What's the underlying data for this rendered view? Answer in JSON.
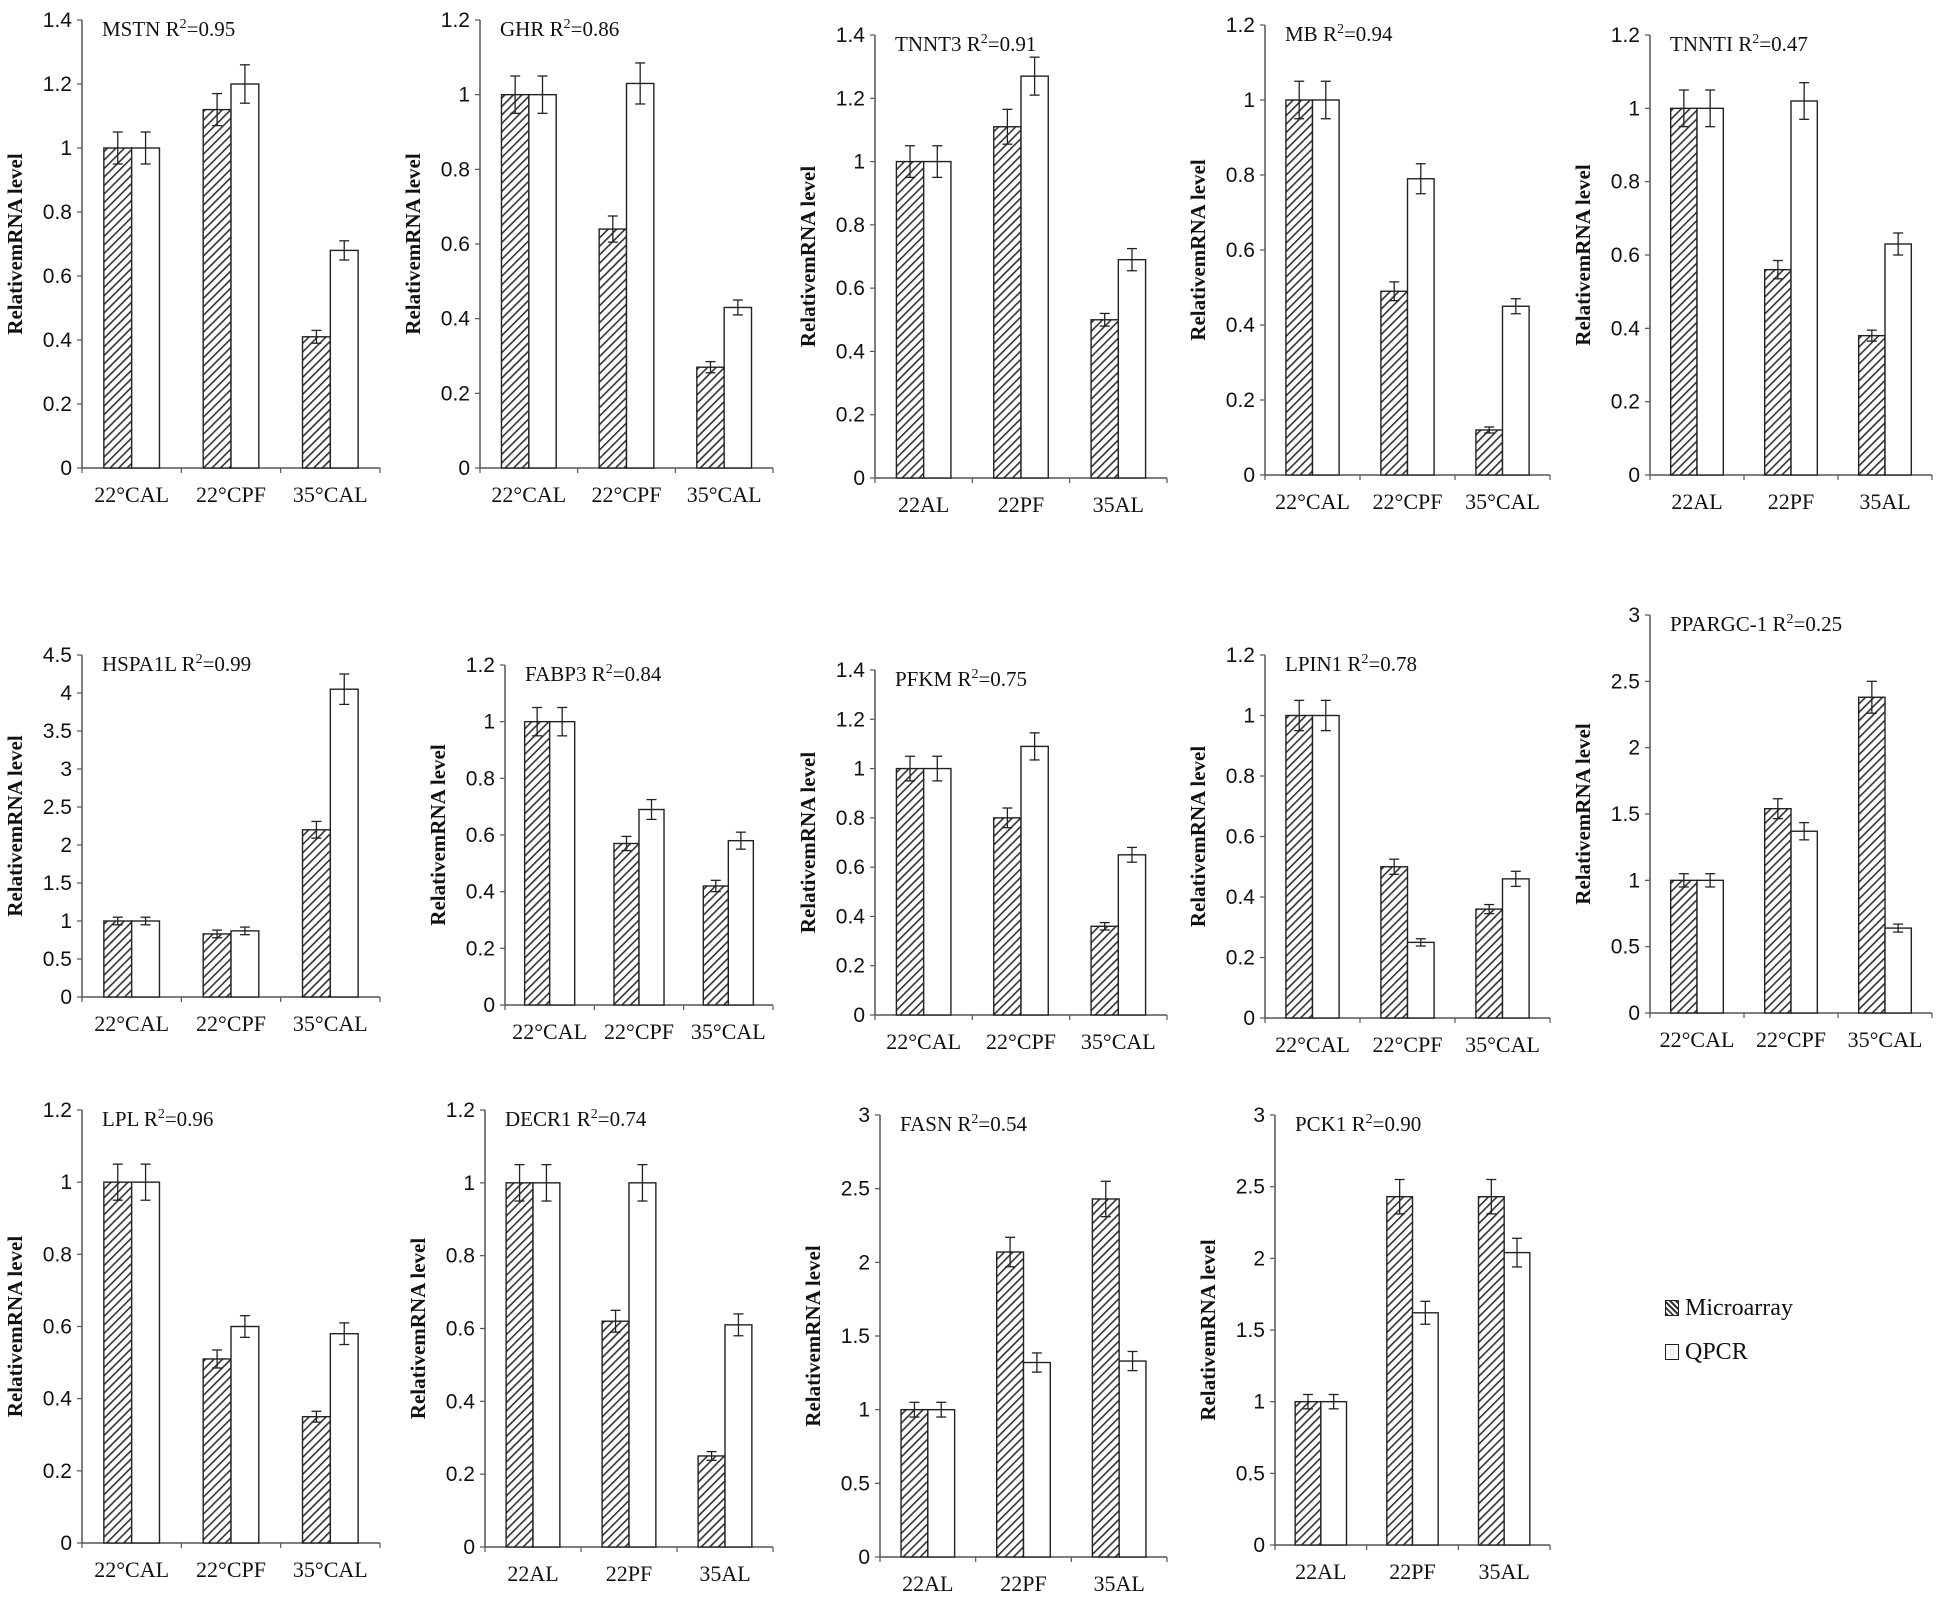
{
  "legend": {
    "microarray": "Microarray",
    "qpcr": "QPCR"
  },
  "colors": {
    "hatch": "#333333",
    "open": "#ffffff",
    "axis": "#555555",
    "text": "#111111"
  },
  "chart_data": [
    {
      "type": "bar",
      "gene": "MSTN",
      "r2": "R",
      "r2_value": "=0.95",
      "ylabel": "RelativemRNA level",
      "categories": [
        "22°CAL",
        "22°CPF",
        "35°CAL"
      ],
      "ylim": [
        0,
        1.4
      ],
      "yticks": [
        "0",
        "0.2",
        "0.4",
        "0.6",
        "0.8",
        "1",
        "1.2",
        "1.4"
      ],
      "series": [
        {
          "name": "Microarray",
          "values": [
            1.0,
            1.12,
            0.41
          ],
          "errors": [
            0.05,
            0.05,
            0.02
          ]
        },
        {
          "name": "QPCR",
          "values": [
            1.0,
            1.2,
            0.68
          ],
          "errors": [
            0.05,
            0.06,
            0.03
          ]
        }
      ]
    },
    {
      "type": "bar",
      "gene": "GHR",
      "r2": "R",
      "r2_value": "=0.86",
      "ylabel": "RelativemRNA level",
      "categories": [
        "22°CAL",
        "22°CPF",
        "35°CAL"
      ],
      "ylim": [
        0,
        1.2
      ],
      "yticks": [
        "0",
        "0.2",
        "0.4",
        "0.6",
        "0.8",
        "1",
        "1.2"
      ],
      "series": [
        {
          "name": "Microarray",
          "values": [
            1.0,
            0.64,
            0.27
          ],
          "errors": [
            0.05,
            0.035,
            0.015
          ]
        },
        {
          "name": "QPCR",
          "values": [
            1.0,
            1.03,
            0.43
          ],
          "errors": [
            0.05,
            0.055,
            0.02
          ]
        }
      ]
    },
    {
      "type": "bar",
      "gene": "TNNT3",
      "r2": "R",
      "r2_value": "=0.91",
      "ylabel": "RelativemRNA level",
      "categories": [
        "22AL",
        "22PF",
        "35AL"
      ],
      "ylim": [
        0,
        1.4
      ],
      "yticks": [
        "0",
        "0.2",
        "0.4",
        "0.6",
        "0.8",
        "1",
        "1.2",
        "1.4"
      ],
      "series": [
        {
          "name": "Microarray",
          "values": [
            1.0,
            1.11,
            0.5
          ],
          "errors": [
            0.05,
            0.055,
            0.02
          ]
        },
        {
          "name": "QPCR",
          "values": [
            1.0,
            1.27,
            0.69
          ],
          "errors": [
            0.05,
            0.06,
            0.035
          ]
        }
      ]
    },
    {
      "type": "bar",
      "gene": "MB",
      "r2": "R",
      "r2_value": "=0.94",
      "ylabel": "RelativemRNA level",
      "categories": [
        "22°CAL",
        "22°CPF",
        "35°CAL"
      ],
      "ylim": [
        0,
        1.2
      ],
      "yticks": [
        "0",
        "0.2",
        "0.4",
        "0.6",
        "0.8",
        "1",
        "1.2"
      ],
      "series": [
        {
          "name": "Microarray",
          "values": [
            1.0,
            0.49,
            0.12
          ],
          "errors": [
            0.05,
            0.025,
            0.008
          ]
        },
        {
          "name": "QPCR",
          "values": [
            1.0,
            0.79,
            0.45
          ],
          "errors": [
            0.05,
            0.04,
            0.02
          ]
        }
      ]
    },
    {
      "type": "bar",
      "gene": "TNNTI",
      "r2": "R",
      "r2_value": "=0.47",
      "ylabel": "RelativemRNA level",
      "categories": [
        "22AL",
        "22PF",
        "35AL"
      ],
      "ylim": [
        0,
        1.2
      ],
      "yticks": [
        "0",
        "0.2",
        "0.4",
        "0.6",
        "0.8",
        "1",
        "1.2"
      ],
      "series": [
        {
          "name": "Microarray",
          "values": [
            1.0,
            0.56,
            0.38
          ],
          "errors": [
            0.05,
            0.025,
            0.015
          ]
        },
        {
          "name": "QPCR",
          "values": [
            1.0,
            1.02,
            0.63
          ],
          "errors": [
            0.05,
            0.05,
            0.03
          ]
        }
      ]
    },
    {
      "type": "bar",
      "gene": "HSPA1L",
      "r2": "R",
      "r2_value": "=0.99",
      "ylabel": "RelativemRNA level",
      "categories": [
        "22°CAL",
        "22°CPF",
        "35°CAL"
      ],
      "ylim": [
        0,
        4.5
      ],
      "yticks": [
        "0",
        "0.5",
        "1",
        "1.5",
        "2",
        "2.5",
        "3",
        "3.5",
        "4",
        "4.5"
      ],
      "series": [
        {
          "name": "Microarray",
          "values": [
            1.0,
            0.83,
            2.2
          ],
          "errors": [
            0.05,
            0.05,
            0.11
          ]
        },
        {
          "name": "QPCR",
          "values": [
            1.0,
            0.87,
            4.05
          ],
          "errors": [
            0.05,
            0.05,
            0.2
          ]
        }
      ]
    },
    {
      "type": "bar",
      "gene": "FABP3",
      "r2": "R",
      "r2_value": "=0.84",
      "ylabel": "RelativemRNA level",
      "categories": [
        "22°CAL",
        "22°CPF",
        "35°CAL"
      ],
      "ylim": [
        0,
        1.2
      ],
      "yticks": [
        "0",
        "0.2",
        "0.4",
        "0.6",
        "0.8",
        "1",
        "1.2"
      ],
      "series": [
        {
          "name": "Microarray",
          "values": [
            1.0,
            0.57,
            0.42
          ],
          "errors": [
            0.05,
            0.025,
            0.02
          ]
        },
        {
          "name": "QPCR",
          "values": [
            1.0,
            0.69,
            0.58
          ],
          "errors": [
            0.05,
            0.035,
            0.03
          ]
        }
      ]
    },
    {
      "type": "bar",
      "gene": "PFKM",
      "r2": "R",
      "r2_value": "=0.75",
      "ylabel": "RelativemRNA level",
      "categories": [
        "22°CAL",
        "22°CPF",
        "35°CAL"
      ],
      "ylim": [
        0,
        1.4
      ],
      "yticks": [
        "0",
        "0.2",
        "0.4",
        "0.6",
        "0.8",
        "1",
        "1.2",
        "1.4"
      ],
      "series": [
        {
          "name": "Microarray",
          "values": [
            1.0,
            0.8,
            0.36
          ],
          "errors": [
            0.05,
            0.04,
            0.015
          ]
        },
        {
          "name": "QPCR",
          "values": [
            1.0,
            1.09,
            0.65
          ],
          "errors": [
            0.05,
            0.055,
            0.03
          ]
        }
      ]
    },
    {
      "type": "bar",
      "gene": "LPIN1",
      "r2": "R",
      "r2_value": "=0.78",
      "ylabel": "RelativemRNA level",
      "categories": [
        "22°CAL",
        "22°CPF",
        "35°CAL"
      ],
      "ylim": [
        0,
        1.2
      ],
      "yticks": [
        "0",
        "0.2",
        "0.4",
        "0.6",
        "0.8",
        "1",
        "1.2"
      ],
      "series": [
        {
          "name": "Microarray",
          "values": [
            1.0,
            0.5,
            0.36
          ],
          "errors": [
            0.05,
            0.025,
            0.015
          ]
        },
        {
          "name": "QPCR",
          "values": [
            1.0,
            0.25,
            0.46
          ],
          "errors": [
            0.05,
            0.012,
            0.025
          ]
        }
      ]
    },
    {
      "type": "bar",
      "gene": "PPARGC-1",
      "r2": "R",
      "r2_value": "=0.25",
      "ylabel": "RelativemRNA level",
      "categories": [
        "22°CAL",
        "22°CPF",
        "35°CAL"
      ],
      "ylim": [
        0,
        3
      ],
      "yticks": [
        "0",
        "0.5",
        "1",
        "1.5",
        "2",
        "2.5",
        "3"
      ],
      "series": [
        {
          "name": "Microarray",
          "values": [
            1.0,
            1.54,
            2.38
          ],
          "errors": [
            0.05,
            0.075,
            0.12
          ]
        },
        {
          "name": "QPCR",
          "values": [
            1.0,
            1.37,
            0.64
          ],
          "errors": [
            0.05,
            0.065,
            0.03
          ]
        }
      ]
    },
    {
      "type": "bar",
      "gene": "LPL",
      "r2": "R",
      "r2_value": "=0.96",
      "ylabel": "RelativemRNA level",
      "categories": [
        "22°CAL",
        "22°CPF",
        "35°CAL"
      ],
      "ylim": [
        0,
        1.2
      ],
      "yticks": [
        "0",
        "0.2",
        "0.4",
        "0.6",
        "0.8",
        "1",
        "1.2"
      ],
      "series": [
        {
          "name": "Microarray",
          "values": [
            1.0,
            0.51,
            0.35
          ],
          "errors": [
            0.05,
            0.025,
            0.015
          ]
        },
        {
          "name": "QPCR",
          "values": [
            1.0,
            0.6,
            0.58
          ],
          "errors": [
            0.05,
            0.03,
            0.03
          ]
        }
      ]
    },
    {
      "type": "bar",
      "gene": "DECR1",
      "r2": "R",
      "r2_value": "=0.74",
      "ylabel": "RelativemRNA level",
      "categories": [
        "22AL",
        "22PF",
        "35AL"
      ],
      "ylim": [
        0,
        1.2
      ],
      "yticks": [
        "0",
        "0.2",
        "0.4",
        "0.6",
        "0.8",
        "1",
        "1.2"
      ],
      "series": [
        {
          "name": "Microarray",
          "values": [
            1.0,
            0.62,
            0.25
          ],
          "errors": [
            0.05,
            0.03,
            0.012
          ]
        },
        {
          "name": "QPCR",
          "values": [
            1.0,
            1.0,
            0.61
          ],
          "errors": [
            0.05,
            0.05,
            0.03
          ]
        }
      ]
    },
    {
      "type": "bar",
      "gene": "FASN",
      "r2": "R",
      "r2_value": "=0.54",
      "ylabel": "RelativemRNA level",
      "categories": [
        "22AL",
        "22PF",
        "35AL"
      ],
      "ylim": [
        0,
        3
      ],
      "yticks": [
        "0",
        "0.5",
        "1",
        "1.5",
        "2",
        "2.5",
        "3"
      ],
      "series": [
        {
          "name": "Microarray",
          "values": [
            1.0,
            2.07,
            2.43
          ],
          "errors": [
            0.05,
            0.1,
            0.12
          ]
        },
        {
          "name": "QPCR",
          "values": [
            1.0,
            1.32,
            1.33
          ],
          "errors": [
            0.05,
            0.065,
            0.065
          ]
        }
      ]
    },
    {
      "type": "bar",
      "gene": "PCK1",
      "r2": "R",
      "r2_value": "=0.90",
      "ylabel": "RelativemRNA level",
      "categories": [
        "22AL",
        "22PF",
        "35AL"
      ],
      "ylim": [
        0,
        3
      ],
      "yticks": [
        "0",
        "0.5",
        "1",
        "1.5",
        "2",
        "2.5",
        "3"
      ],
      "series": [
        {
          "name": "Microarray",
          "values": [
            1.0,
            2.43,
            2.43
          ],
          "errors": [
            0.05,
            0.12,
            0.12
          ]
        },
        {
          "name": "QPCR",
          "values": [
            1.0,
            1.62,
            2.04
          ],
          "errors": [
            0.05,
            0.08,
            0.1
          ]
        }
      ]
    }
  ]
}
